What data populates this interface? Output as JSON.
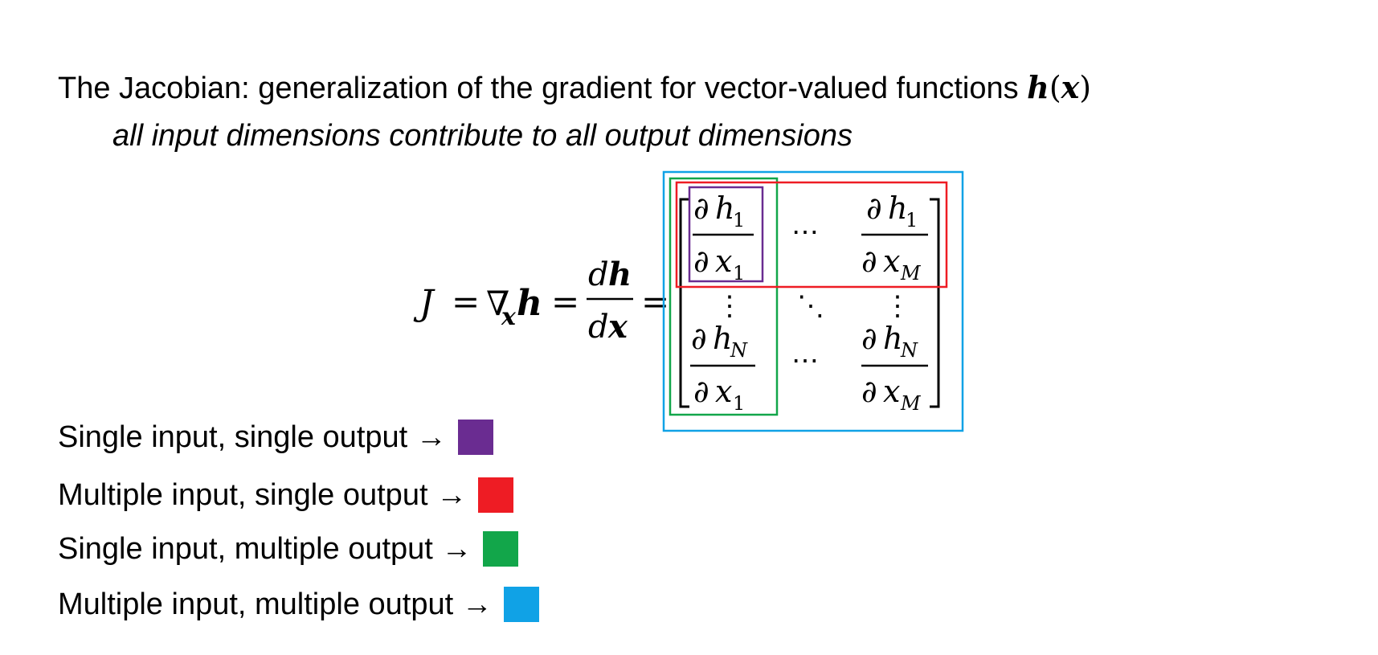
{
  "heading": {
    "text": "The Jacobian: generalization of the gradient for vector-valued functions ",
    "func": "h",
    "open_paren": "(",
    "arg": "x",
    "close_paren": ")"
  },
  "subheading": "all input dimensions contribute to all output dimensions",
  "equation": {
    "J": "J",
    "equals": "=",
    "nabla": "∇",
    "sub_x": "x",
    "h": "h",
    "frac_num_d": "d",
    "frac_num_h": "h",
    "frac_den_d": "d",
    "frac_den_x": "x",
    "partial": "∂",
    "h_letter": "h",
    "x_letter": "x",
    "sub_1": "1",
    "sub_N": "N",
    "sub_M": "M",
    "hdots": "⋯",
    "vdots": "⋮",
    "ddots": "⋱"
  },
  "legend": [
    {
      "label": "Single input, single output →",
      "color": "#6a2c91"
    },
    {
      "label": "Multiple input, single output →",
      "color": "#ee1c24"
    },
    {
      "label": "Single input, multiple output →",
      "color": "#12a64a"
    },
    {
      "label": "Multiple input, multiple output →",
      "color": "#10a2e6"
    }
  ]
}
